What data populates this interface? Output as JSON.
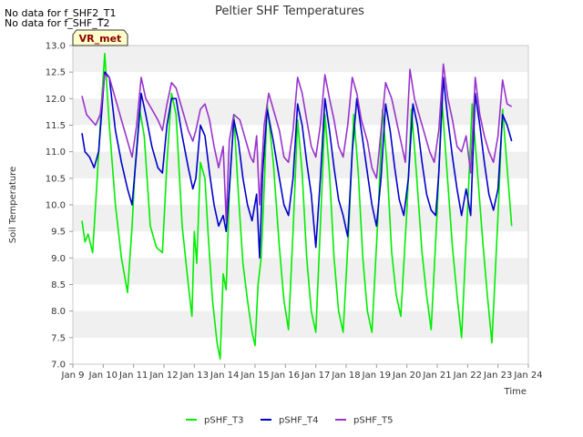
{
  "notes": [
    "No data for f_SHF2_T1",
    "No data for f_SHF_T2"
  ],
  "badge": "VR_met",
  "chart_data": {
    "type": "line",
    "title": "Peltier SHF Temperatures",
    "xlabel": "Time",
    "ylabel": "Soil Temperature",
    "xlim": [
      9,
      24
    ],
    "ylim": [
      7.0,
      13.0
    ],
    "x_ticks": [
      {
        "v": 9,
        "label": "Jan 9"
      },
      {
        "v": 10,
        "label": "Jan 10"
      },
      {
        "v": 11,
        "label": "Jan 11"
      },
      {
        "v": 12,
        "label": "Jan 12"
      },
      {
        "v": 13,
        "label": "Jan 13"
      },
      {
        "v": 14,
        "label": "Jan 14"
      },
      {
        "v": 15,
        "label": "Jan 15"
      },
      {
        "v": 16,
        "label": "Jan 16"
      },
      {
        "v": 17,
        "label": "Jan 17"
      },
      {
        "v": 18,
        "label": "Jan 18"
      },
      {
        "v": 19,
        "label": "Jan 19"
      },
      {
        "v": 20,
        "label": "Jan 20"
      },
      {
        "v": 21,
        "label": "Jan 21"
      },
      {
        "v": 22,
        "label": "Jan 22"
      },
      {
        "v": 23,
        "label": "Jan 23"
      },
      {
        "v": 24,
        "label": "Jan 24"
      }
    ],
    "y_ticks": [
      "7.0",
      "7.5",
      "8.0",
      "8.5",
      "9.0",
      "9.5",
      "10.0",
      "10.5",
      "11.0",
      "11.5",
      "12.0",
      "12.5",
      "13.0"
    ],
    "grid": "horizontal bands",
    "legend": "bottom-center",
    "series": [
      {
        "name": "pSHF_T3",
        "color": "#00ee00",
        "points": [
          [
            9.3,
            9.7
          ],
          [
            9.4,
            9.3
          ],
          [
            9.5,
            9.45
          ],
          [
            9.65,
            9.1
          ],
          [
            9.8,
            10.5
          ],
          [
            9.95,
            12.0
          ],
          [
            10.05,
            12.85
          ],
          [
            10.2,
            11.5
          ],
          [
            10.4,
            10.0
          ],
          [
            10.6,
            9.0
          ],
          [
            10.8,
            8.35
          ],
          [
            10.95,
            9.6
          ],
          [
            11.05,
            10.7
          ],
          [
            11.2,
            11.8
          ],
          [
            11.35,
            11.3
          ],
          [
            11.55,
            9.6
          ],
          [
            11.75,
            9.2
          ],
          [
            11.95,
            9.1
          ],
          [
            12.1,
            10.8
          ],
          [
            12.25,
            12.1
          ],
          [
            12.4,
            11.7
          ],
          [
            12.6,
            9.6
          ],
          [
            12.8,
            8.5
          ],
          [
            12.92,
            7.9
          ],
          [
            13.0,
            9.5
          ],
          [
            13.08,
            8.9
          ],
          [
            13.2,
            10.8
          ],
          [
            13.35,
            10.5
          ],
          [
            13.45,
            9.5
          ],
          [
            13.6,
            8.2
          ],
          [
            13.75,
            7.4
          ],
          [
            13.85,
            7.1
          ],
          [
            13.95,
            8.7
          ],
          [
            14.05,
            8.4
          ],
          [
            14.15,
            10.2
          ],
          [
            14.3,
            11.7
          ],
          [
            14.45,
            10.2
          ],
          [
            14.6,
            8.9
          ],
          [
            14.75,
            8.2
          ],
          [
            14.9,
            7.6
          ],
          [
            15.0,
            7.35
          ],
          [
            15.1,
            8.5
          ],
          [
            15.2,
            9.0
          ],
          [
            15.3,
            10.3
          ],
          [
            15.4,
            11.9
          ],
          [
            15.6,
            10.8
          ],
          [
            15.8,
            9.2
          ],
          [
            15.95,
            8.2
          ],
          [
            16.1,
            7.65
          ],
          [
            16.25,
            9.5
          ],
          [
            16.4,
            11.6
          ],
          [
            16.55,
            10.6
          ],
          [
            16.7,
            9.0
          ],
          [
            16.85,
            8.0
          ],
          [
            17.0,
            7.6
          ],
          [
            17.15,
            9.6
          ],
          [
            17.3,
            11.7
          ],
          [
            17.45,
            10.6
          ],
          [
            17.6,
            9.0
          ],
          [
            17.75,
            8.0
          ],
          [
            17.9,
            7.6
          ],
          [
            18.1,
            9.7
          ],
          [
            18.25,
            11.7
          ],
          [
            18.4,
            10.6
          ],
          [
            18.55,
            9.0
          ],
          [
            18.7,
            8.0
          ],
          [
            18.85,
            7.6
          ],
          [
            19.05,
            9.8
          ],
          [
            19.2,
            11.8
          ],
          [
            19.35,
            10.7
          ],
          [
            19.5,
            9.1
          ],
          [
            19.65,
            8.3
          ],
          [
            19.8,
            7.9
          ],
          [
            20.0,
            9.9
          ],
          [
            20.15,
            11.8
          ],
          [
            20.3,
            10.7
          ],
          [
            20.5,
            9.1
          ],
          [
            20.65,
            8.3
          ],
          [
            20.8,
            7.65
          ],
          [
            21.0,
            9.9
          ],
          [
            21.15,
            12.0
          ],
          [
            21.3,
            10.8
          ],
          [
            21.5,
            9.2
          ],
          [
            21.65,
            8.3
          ],
          [
            21.8,
            7.5
          ],
          [
            22.0,
            9.9
          ],
          [
            22.15,
            11.9
          ],
          [
            22.3,
            10.8
          ],
          [
            22.5,
            9.3
          ],
          [
            22.65,
            8.3
          ],
          [
            22.8,
            7.4
          ],
          [
            23.0,
            9.8
          ],
          [
            23.15,
            11.8
          ],
          [
            23.3,
            10.7
          ],
          [
            23.45,
            9.6
          ]
        ]
      },
      {
        "name": "pSHF_T4",
        "color": "#0000cc",
        "points": [
          [
            9.3,
            11.35
          ],
          [
            9.4,
            11.0
          ],
          [
            9.55,
            10.9
          ],
          [
            9.7,
            10.7
          ],
          [
            9.85,
            11.0
          ],
          [
            10.05,
            12.5
          ],
          [
            10.2,
            12.4
          ],
          [
            10.4,
            11.4
          ],
          [
            10.6,
            10.8
          ],
          [
            10.8,
            10.3
          ],
          [
            10.95,
            10.0
          ],
          [
            11.1,
            11.0
          ],
          [
            11.25,
            12.1
          ],
          [
            11.4,
            11.7
          ],
          [
            11.6,
            11.1
          ],
          [
            11.8,
            10.7
          ],
          [
            11.95,
            10.6
          ],
          [
            12.1,
            11.5
          ],
          [
            12.25,
            12.0
          ],
          [
            12.4,
            12.0
          ],
          [
            12.6,
            11.3
          ],
          [
            12.8,
            10.7
          ],
          [
            12.95,
            10.3
          ],
          [
            13.05,
            10.5
          ],
          [
            13.2,
            11.5
          ],
          [
            13.35,
            11.3
          ],
          [
            13.5,
            10.6
          ],
          [
            13.65,
            10.0
          ],
          [
            13.8,
            9.6
          ],
          [
            13.95,
            9.8
          ],
          [
            14.05,
            9.5
          ],
          [
            14.15,
            10.3
          ],
          [
            14.3,
            11.6
          ],
          [
            14.45,
            11.2
          ],
          [
            14.6,
            10.5
          ],
          [
            14.75,
            10.0
          ],
          [
            14.9,
            9.7
          ],
          [
            15.05,
            10.2
          ],
          [
            15.15,
            9.0
          ],
          [
            15.25,
            10.6
          ],
          [
            15.4,
            11.8
          ],
          [
            15.6,
            11.2
          ],
          [
            15.8,
            10.5
          ],
          [
            15.95,
            10.0
          ],
          [
            16.1,
            9.8
          ],
          [
            16.25,
            10.5
          ],
          [
            16.4,
            11.9
          ],
          [
            16.55,
            11.5
          ],
          [
            16.7,
            10.8
          ],
          [
            16.85,
            10.2
          ],
          [
            17.0,
            9.2
          ],
          [
            17.15,
            10.5
          ],
          [
            17.3,
            12.0
          ],
          [
            17.45,
            11.4
          ],
          [
            17.6,
            10.7
          ],
          [
            17.75,
            10.1
          ],
          [
            17.9,
            9.8
          ],
          [
            18.05,
            9.4
          ],
          [
            18.2,
            11.0
          ],
          [
            18.35,
            12.0
          ],
          [
            18.5,
            11.4
          ],
          [
            18.7,
            10.6
          ],
          [
            18.85,
            10.0
          ],
          [
            19.0,
            9.6
          ],
          [
            19.15,
            10.5
          ],
          [
            19.3,
            11.9
          ],
          [
            19.45,
            11.4
          ],
          [
            19.6,
            10.7
          ],
          [
            19.75,
            10.1
          ],
          [
            19.9,
            9.8
          ],
          [
            20.05,
            10.5
          ],
          [
            20.2,
            11.9
          ],
          [
            20.35,
            11.5
          ],
          [
            20.5,
            10.8
          ],
          [
            20.65,
            10.2
          ],
          [
            20.8,
            9.9
          ],
          [
            20.95,
            9.8
          ],
          [
            21.05,
            10.6
          ],
          [
            21.2,
            12.4
          ],
          [
            21.35,
            11.6
          ],
          [
            21.5,
            10.9
          ],
          [
            21.65,
            10.3
          ],
          [
            21.8,
            9.8
          ],
          [
            21.95,
            10.3
          ],
          [
            22.1,
            9.8
          ],
          [
            22.25,
            12.1
          ],
          [
            22.4,
            11.5
          ],
          [
            22.55,
            10.8
          ],
          [
            22.7,
            10.2
          ],
          [
            22.85,
            9.9
          ],
          [
            23.0,
            10.3
          ],
          [
            23.15,
            11.7
          ],
          [
            23.3,
            11.5
          ],
          [
            23.45,
            11.2
          ]
        ]
      },
      {
        "name": "pSHF_T5",
        "color": "#9933cc",
        "points": [
          [
            9.3,
            12.05
          ],
          [
            9.45,
            11.7
          ],
          [
            9.6,
            11.6
          ],
          [
            9.75,
            11.5
          ],
          [
            9.9,
            11.7
          ],
          [
            10.05,
            12.45
          ],
          [
            10.2,
            12.4
          ],
          [
            10.4,
            12.0
          ],
          [
            10.6,
            11.6
          ],
          [
            10.8,
            11.2
          ],
          [
            10.95,
            10.9
          ],
          [
            11.1,
            11.5
          ],
          [
            11.25,
            12.4
          ],
          [
            11.4,
            12.0
          ],
          [
            11.6,
            11.8
          ],
          [
            11.8,
            11.6
          ],
          [
            11.95,
            11.4
          ],
          [
            12.1,
            11.9
          ],
          [
            12.25,
            12.3
          ],
          [
            12.4,
            12.2
          ],
          [
            12.6,
            11.8
          ],
          [
            12.8,
            11.4
          ],
          [
            12.95,
            11.2
          ],
          [
            13.05,
            11.4
          ],
          [
            13.2,
            11.8
          ],
          [
            13.35,
            11.9
          ],
          [
            13.5,
            11.6
          ],
          [
            13.65,
            11.1
          ],
          [
            13.8,
            10.7
          ],
          [
            13.95,
            11.1
          ],
          [
            14.05,
            9.7
          ],
          [
            14.15,
            11.2
          ],
          [
            14.3,
            11.7
          ],
          [
            14.5,
            11.6
          ],
          [
            14.7,
            11.2
          ],
          [
            14.85,
            10.9
          ],
          [
            14.95,
            10.8
          ],
          [
            15.05,
            11.3
          ],
          [
            15.15,
            10.0
          ],
          [
            15.3,
            11.5
          ],
          [
            15.45,
            12.1
          ],
          [
            15.6,
            11.8
          ],
          [
            15.8,
            11.4
          ],
          [
            15.95,
            10.9
          ],
          [
            16.1,
            10.8
          ],
          [
            16.25,
            11.4
          ],
          [
            16.4,
            12.4
          ],
          [
            16.55,
            12.1
          ],
          [
            16.7,
            11.6
          ],
          [
            16.85,
            11.1
          ],
          [
            17.0,
            10.9
          ],
          [
            17.15,
            11.5
          ],
          [
            17.3,
            12.45
          ],
          [
            17.45,
            12.0
          ],
          [
            17.6,
            11.6
          ],
          [
            17.75,
            11.1
          ],
          [
            17.9,
            10.9
          ],
          [
            18.05,
            11.5
          ],
          [
            18.2,
            12.4
          ],
          [
            18.35,
            12.1
          ],
          [
            18.5,
            11.6
          ],
          [
            18.7,
            11.2
          ],
          [
            18.85,
            10.7
          ],
          [
            19.0,
            10.5
          ],
          [
            19.15,
            11.4
          ],
          [
            19.3,
            12.3
          ],
          [
            19.5,
            12.0
          ],
          [
            19.65,
            11.6
          ],
          [
            19.8,
            11.2
          ],
          [
            19.95,
            10.8
          ],
          [
            20.1,
            12.55
          ],
          [
            20.25,
            12.0
          ],
          [
            20.4,
            11.7
          ],
          [
            20.6,
            11.3
          ],
          [
            20.75,
            11.0
          ],
          [
            20.9,
            10.8
          ],
          [
            21.05,
            11.4
          ],
          [
            21.2,
            12.65
          ],
          [
            21.35,
            12.0
          ],
          [
            21.5,
            11.6
          ],
          [
            21.65,
            11.1
          ],
          [
            21.8,
            11.0
          ],
          [
            21.95,
            11.3
          ],
          [
            22.1,
            10.6
          ],
          [
            22.25,
            12.4
          ],
          [
            22.4,
            11.7
          ],
          [
            22.55,
            11.3
          ],
          [
            22.7,
            11.0
          ],
          [
            22.85,
            10.8
          ],
          [
            23.0,
            11.3
          ],
          [
            23.15,
            12.35
          ],
          [
            23.3,
            11.9
          ],
          [
            23.45,
            11.85
          ]
        ]
      }
    ]
  }
}
